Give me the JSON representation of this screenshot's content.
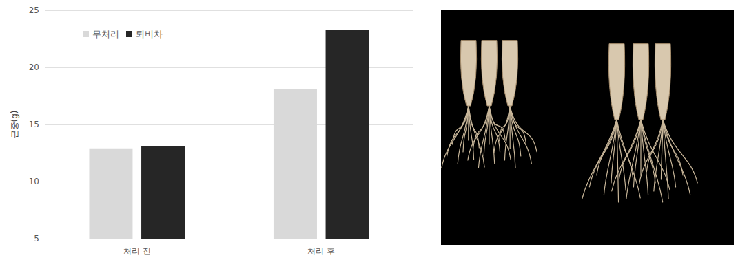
{
  "chart_data": {
    "type": "bar",
    "categories": [
      "처리 전",
      "처리 후"
    ],
    "series": [
      {
        "name": "무처리",
        "color": "#d9d9d9",
        "values": [
          12.9,
          18.1
        ]
      },
      {
        "name": "퇴비차",
        "color": "#262626",
        "values": [
          13.1,
          23.3
        ]
      }
    ],
    "y_label": "근중(g)",
    "ylim": [
      5,
      25
    ],
    "yticks": [
      5,
      10,
      15,
      20,
      25
    ],
    "grid": true,
    "legend": "upper left"
  }
}
